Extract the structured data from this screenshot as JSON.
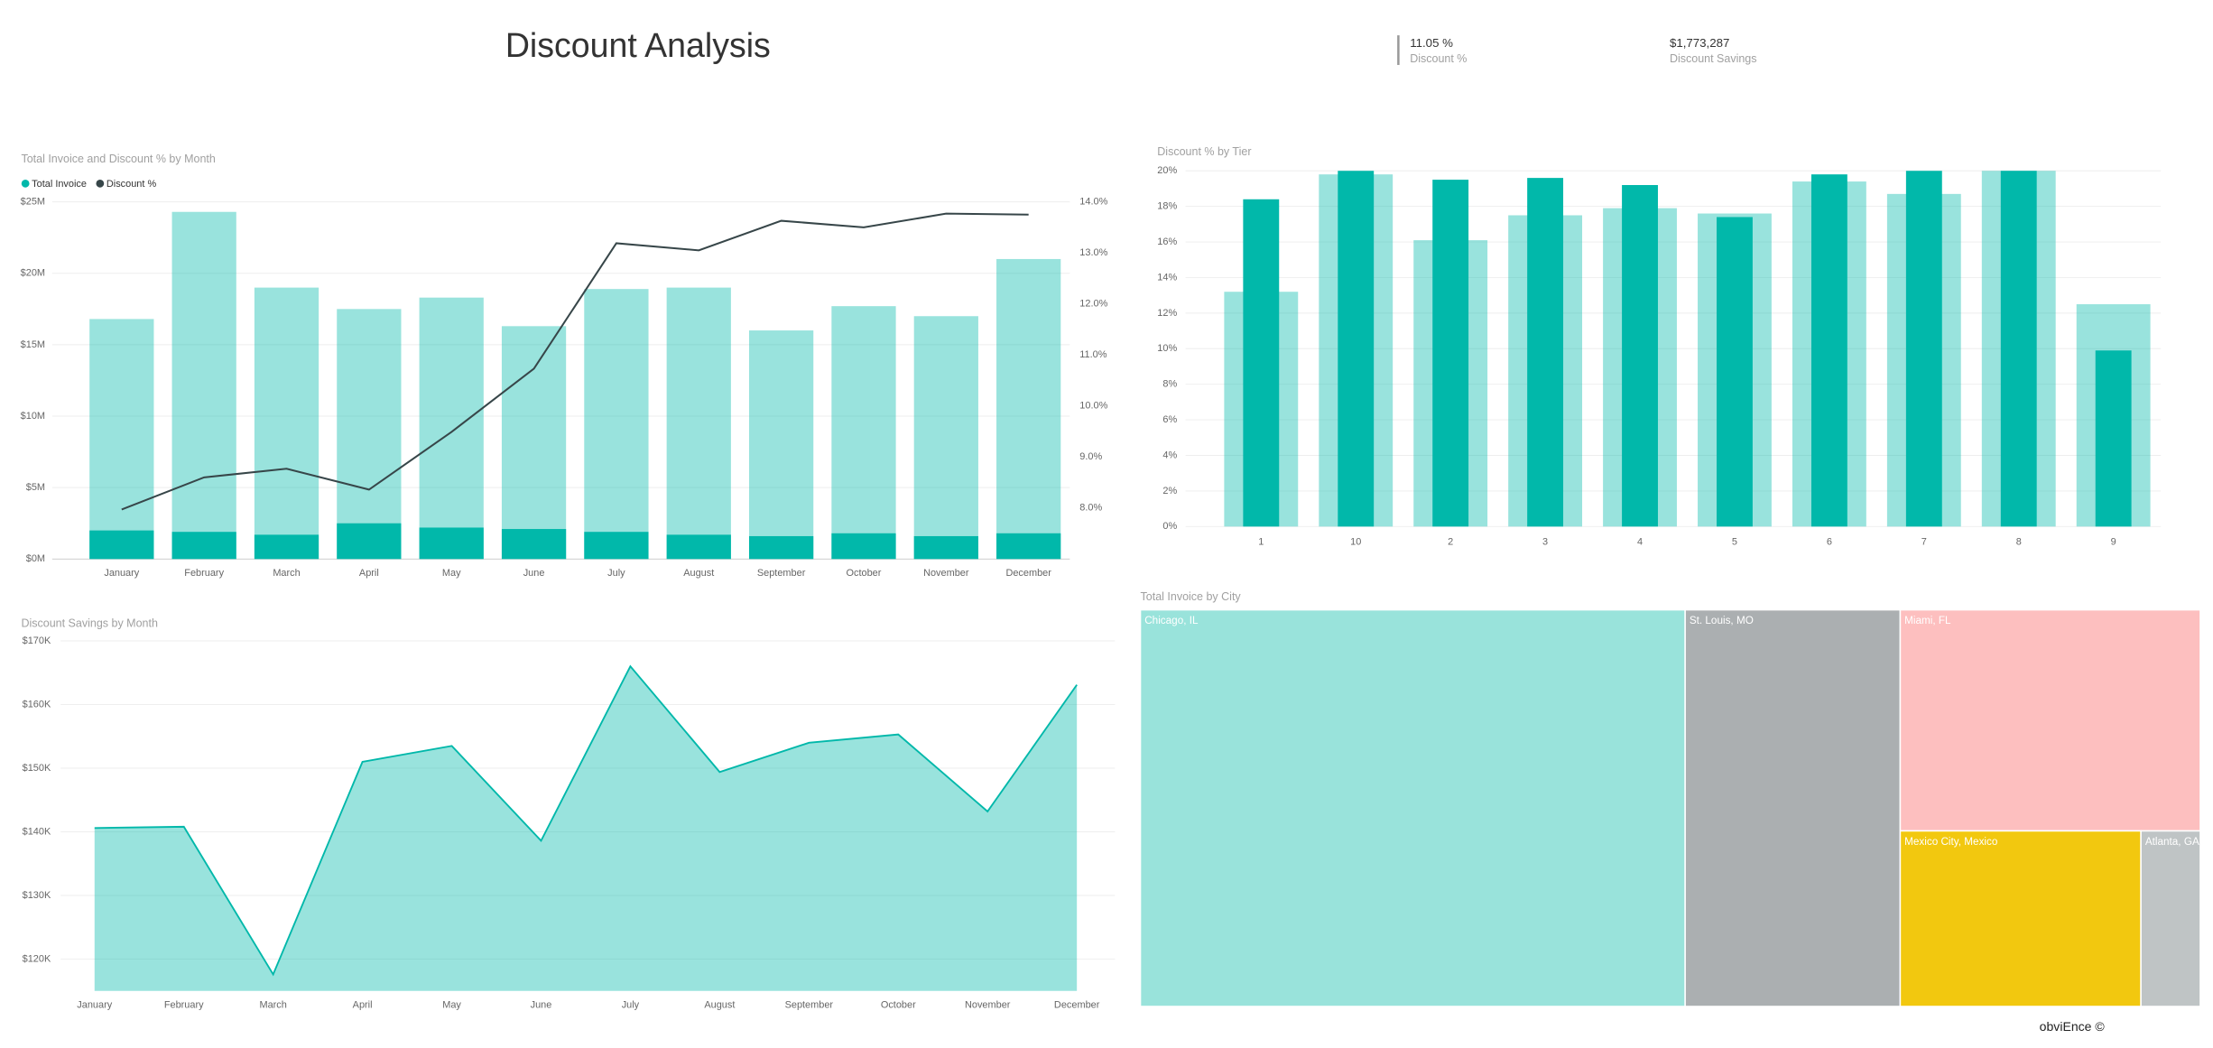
{
  "header": {
    "title": "Discount Analysis",
    "kpis": [
      {
        "value": "11.05 %",
        "label": "Discount %"
      },
      {
        "value": "$1,773,287",
        "label": "Discount Savings"
      }
    ]
  },
  "chart_data": [
    {
      "type": "combo",
      "title": "Total Invoice and Discount % by Month",
      "categories": [
        "January",
        "February",
        "March",
        "April",
        "May",
        "June",
        "July",
        "August",
        "September",
        "October",
        "November",
        "December"
      ],
      "series": [
        {
          "name": "Total Invoice",
          "color": "#01b8aa",
          "values": [
            16800000,
            24300000,
            19000000,
            17500000,
            18300000,
            16300000,
            18900000,
            19000000,
            16000000,
            17700000,
            17000000,
            21000000
          ]
        },
        {
          "color": "#01b8aa",
          "values": [
            2000000,
            1900000,
            1700000,
            2500000,
            2200000,
            2100000,
            1900000,
            1700000,
            1600000,
            1800000,
            1600000,
            1800000
          ]
        },
        {
          "name": "Discount %",
          "color": "#374649",
          "type": "line",
          "axis": "y2",
          "values": [
            7.97,
            8.6,
            8.77,
            8.36,
            9.49,
            10.73,
            13.19,
            13.05,
            13.63,
            13.5,
            13.77,
            13.75
          ]
        }
      ],
      "ylim": [
        0,
        25000000
      ],
      "yticks": [
        {
          "value": 0,
          "label": "$0M"
        },
        {
          "value": 5000000,
          "label": "$5M"
        },
        {
          "value": 10000000,
          "label": "$10M"
        },
        {
          "value": 15000000,
          "label": "$15M"
        },
        {
          "value": 20000000,
          "label": "$20M"
        },
        {
          "value": 25000000,
          "label": "$25M"
        }
      ],
      "y2lim": [
        7,
        14
      ],
      "y2ticks": [
        {
          "value": 8,
          "label": "8.0%"
        },
        {
          "value": 9,
          "label": "9.0%"
        },
        {
          "value": 10,
          "label": "10.0%"
        },
        {
          "value": 11,
          "label": "11.0%"
        },
        {
          "value": 12,
          "label": "12.0%"
        },
        {
          "value": 13,
          "label": "13.0%"
        },
        {
          "value": 14,
          "label": "14.0%"
        }
      ],
      "grid": true,
      "legend": "top-left"
    },
    {
      "type": "bar",
      "title": "Discount % by Tier",
      "categories": [
        "1",
        "10",
        "2",
        "3",
        "4",
        "5",
        "6",
        "7",
        "8",
        "9"
      ],
      "series": [
        {
          "color": "#01b8aa",
          "values": [
            13.2,
            19.8,
            16.1,
            17.5,
            17.9,
            17.6,
            19.4,
            18.7,
            20,
            12.5
          ]
        },
        {
          "color": "#01b8aa",
          "values": [
            18.4,
            20,
            19.5,
            19.6,
            19.2,
            17.4,
            19.8,
            20,
            20,
            9.9
          ]
        }
      ],
      "ylim": [
        0,
        20
      ],
      "yticks": [
        {
          "value": 0,
          "label": "0%"
        },
        {
          "value": 2,
          "label": "2%"
        },
        {
          "value": 4,
          "label": "4%"
        },
        {
          "value": 6,
          "label": "6%"
        },
        {
          "value": 8,
          "label": "8%"
        },
        {
          "value": 10,
          "label": "10%"
        },
        {
          "value": 12,
          "label": "12%"
        },
        {
          "value": 14,
          "label": "14%"
        },
        {
          "value": 16,
          "label": "16%"
        },
        {
          "value": 18,
          "label": "18%"
        },
        {
          "value": 20,
          "label": "20%"
        }
      ],
      "grid": true
    },
    {
      "type": "area",
      "title": "Discount Savings by Month",
      "categories": [
        "January",
        "February",
        "March",
        "April",
        "May",
        "June",
        "July",
        "August",
        "September",
        "October",
        "November",
        "December"
      ],
      "values": [
        140600,
        140800,
        117600,
        151000,
        153500,
        138600,
        166000,
        149400,
        154000,
        155300,
        143200,
        163100
      ],
      "color": "#01b8aa",
      "ylim": [
        115000,
        170000
      ],
      "yticks": [
        {
          "value": 120000,
          "label": "$120K"
        },
        {
          "value": 130000,
          "label": "$130K"
        },
        {
          "value": 140000,
          "label": "$140K"
        },
        {
          "value": 150000,
          "label": "$150K"
        },
        {
          "value": 160000,
          "label": "$160K"
        },
        {
          "value": 170000,
          "label": "$170K"
        }
      ],
      "grid": true
    },
    {
      "type": "treemap",
      "title": "Total Invoice by City",
      "categories": [
        "Chicago, IL",
        "St. Louis, MO",
        "Miami, FL",
        "Mexico City, Mexico",
        "Atlanta, GA"
      ],
      "values": [
        114000000,
        45000000,
        35000000,
        22300000,
        5500000
      ],
      "colors": [
        "#99e3db",
        "#abafb1",
        "#fdbfbf",
        "#f2c80f",
        "#bfc4c5"
      ]
    }
  ],
  "footer": "obviEnce ©"
}
